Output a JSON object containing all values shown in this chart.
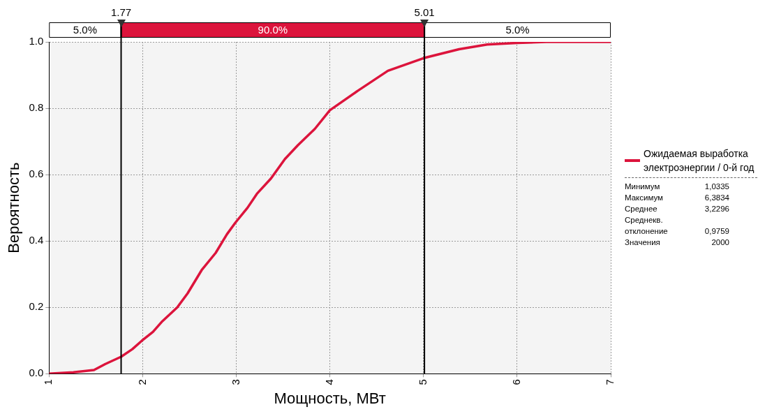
{
  "chart_data": {
    "type": "line",
    "xlabel": "Мощность, МВт",
    "ylabel": "Вероятность",
    "xlim": [
      1,
      7
    ],
    "xticks": [
      1,
      2,
      3,
      4,
      5,
      6,
      7
    ],
    "ylim": [
      0,
      1
    ],
    "yticks": [
      {
        "value": 0,
        "label": "0.0"
      },
      0.2,
      0.4,
      0.6,
      0.8,
      {
        "value": 1,
        "label": "1.0"
      }
    ],
    "grid": true,
    "legend": "right",
    "marker": "none",
    "line_style": "solid",
    "series": [
      {
        "name": "Ожидаемая выработка электроэнергии / 0-й год",
        "color": "#dc143c",
        "x": [
          1.0,
          1.26,
          1.48,
          1.6,
          1.77,
          1.89,
          1.99,
          2.11,
          2.21,
          2.37,
          2.48,
          2.63,
          2.78,
          2.9,
          2.99,
          3.12,
          3.22,
          3.37,
          3.52,
          3.66,
          3.84,
          4.0,
          4.3,
          4.62,
          5.0,
          5.38,
          5.68,
          6.0,
          6.31,
          7.0
        ],
        "values": [
          0,
          0.004,
          0.011,
          0.029,
          0.051,
          0.074,
          0.099,
          0.126,
          0.158,
          0.2,
          0.242,
          0.312,
          0.364,
          0.42,
          0.455,
          0.5,
          0.542,
          0.588,
          0.647,
          0.689,
          0.738,
          0.794,
          0.853,
          0.913,
          0.951,
          0.978,
          0.992,
          0.997,
          1.0,
          1.0
        ]
      }
    ],
    "ref_lines": [
      {
        "axis": "x",
        "value": 1.77,
        "label": "1.77",
        "color": "#000000"
      },
      {
        "axis": "x",
        "value": 5.01,
        "label": "5.01",
        "color": "#000000"
      }
    ],
    "annotations": [
      "5.0%",
      "90.0%",
      "5.0%",
      "Минимум",
      "1,0335",
      "Максимум",
      "6,3834",
      "Среднее",
      "3,2296",
      "Среднекв. отклонение",
      "0,9759",
      "Значения",
      "2000"
    ]
  }
}
